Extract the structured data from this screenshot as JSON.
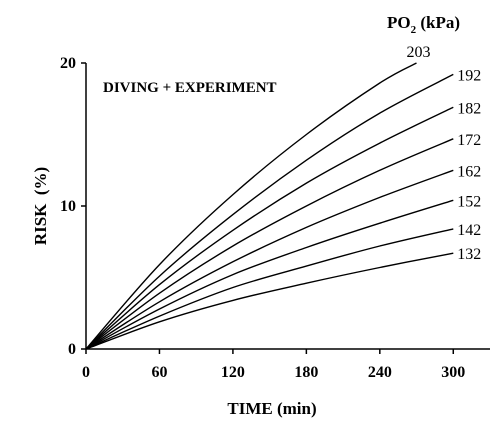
{
  "chart_data": {
    "type": "line",
    "annotation": "DIVING + EXPERIMENT",
    "xlabel": "TIME (min)",
    "ylabel": "RISK  (%)",
    "legend_title": {
      "main": "PO",
      "sub": "2",
      "unit": " (kPa)"
    },
    "xlim": [
      0,
      330
    ],
    "ylim": [
      0,
      20
    ],
    "x_ticks": [
      0,
      60,
      120,
      180,
      240,
      300
    ],
    "y_ticks": [
      0,
      10,
      20
    ],
    "grid": false,
    "series": [
      {
        "name": "132",
        "x": [
          0,
          60,
          120,
          180,
          240,
          300
        ],
        "values": [
          0,
          1.9,
          3.4,
          4.6,
          5.7,
          6.7
        ]
      },
      {
        "name": "142",
        "x": [
          0,
          60,
          120,
          180,
          240,
          300
        ],
        "values": [
          0,
          2.3,
          4.3,
          5.8,
          7.2,
          8.4
        ]
      },
      {
        "name": "152",
        "x": [
          0,
          60,
          120,
          180,
          240,
          300
        ],
        "values": [
          0,
          2.8,
          5.2,
          7.1,
          8.8,
          10.4
        ]
      },
      {
        "name": "162",
        "x": [
          0,
          60,
          120,
          180,
          240,
          300
        ],
        "values": [
          0,
          3.3,
          6.1,
          8.5,
          10.6,
          12.5
        ]
      },
      {
        "name": "172",
        "x": [
          0,
          60,
          120,
          180,
          240,
          300
        ],
        "values": [
          0,
          3.9,
          7.2,
          10.0,
          12.5,
          14.7
        ]
      },
      {
        "name": "182",
        "x": [
          0,
          60,
          120,
          180,
          240,
          300
        ],
        "values": [
          0,
          4.5,
          8.3,
          11.6,
          14.4,
          16.9
        ]
      },
      {
        "name": "192",
        "x": [
          0,
          60,
          120,
          180,
          240,
          300
        ],
        "values": [
          0,
          5.1,
          9.4,
          13.2,
          16.5,
          19.2
        ]
      },
      {
        "name": "203",
        "x": [
          0,
          60,
          120,
          180,
          240,
          270
        ],
        "values": [
          0,
          5.9,
          10.8,
          15.0,
          18.6,
          20.0
        ]
      }
    ]
  }
}
